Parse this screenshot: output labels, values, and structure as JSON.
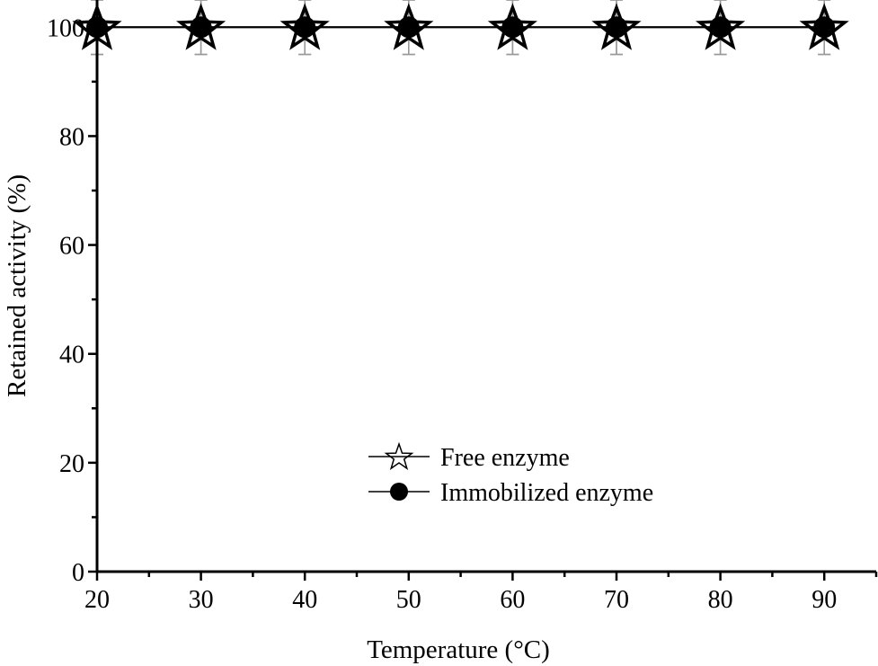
{
  "chart_data": {
    "type": "line",
    "title": "",
    "xlabel": "Temperature (°C)",
    "ylabel": "Retained activity (%)",
    "xlim": [
      20,
      95
    ],
    "ylim": [
      0,
      105
    ],
    "xticks": [
      20,
      30,
      40,
      50,
      60,
      70,
      80,
      90
    ],
    "yticks": [
      0,
      20,
      40,
      60,
      80,
      100
    ],
    "x": [
      20,
      30,
      40,
      50,
      60,
      70,
      80,
      90
    ],
    "series": [
      {
        "name": "Free enzyme",
        "marker": "star-open",
        "values": [
          100,
          100,
          100,
          100,
          100,
          100,
          100,
          100
        ],
        "error": [
          5,
          5,
          5,
          5,
          5,
          5,
          5,
          5
        ]
      },
      {
        "name": "Immobilized enzyme",
        "marker": "circle-filled",
        "values": [
          100,
          100,
          100,
          100,
          100,
          100,
          100,
          100
        ],
        "error": [
          5,
          5,
          5,
          5,
          5,
          5,
          5,
          5
        ]
      }
    ],
    "legend_position": "bottom-center",
    "grid": false
  }
}
